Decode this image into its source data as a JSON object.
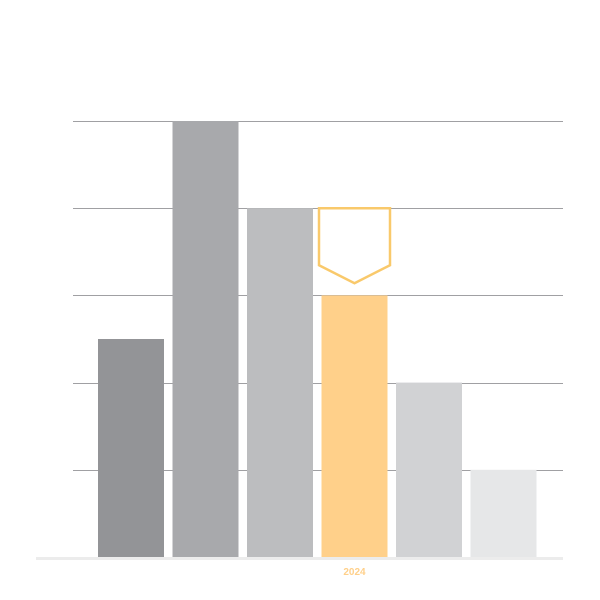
{
  "chart_data": {
    "type": "bar",
    "categories": [
      "",
      "",
      "",
      "2024",
      "",
      ""
    ],
    "values": [
      25,
      50,
      40,
      30,
      20,
      10
    ],
    "highlight_index": 3,
    "marker_value": 40,
    "ylim": [
      0,
      50
    ],
    "grid": true,
    "title": "",
    "xlabel": "",
    "ylabel": "",
    "colors": {
      "bars": [
        "#939497",
        "#a8a9ac",
        "#bcbdbf",
        "#ffd08a",
        "#d1d2d4",
        "#e6e7e8"
      ],
      "highlight_label": "#ffd08a",
      "marker_stroke": "#f9c96b",
      "gridline": "#a0a0a3",
      "baseline": "#ececec"
    }
  }
}
